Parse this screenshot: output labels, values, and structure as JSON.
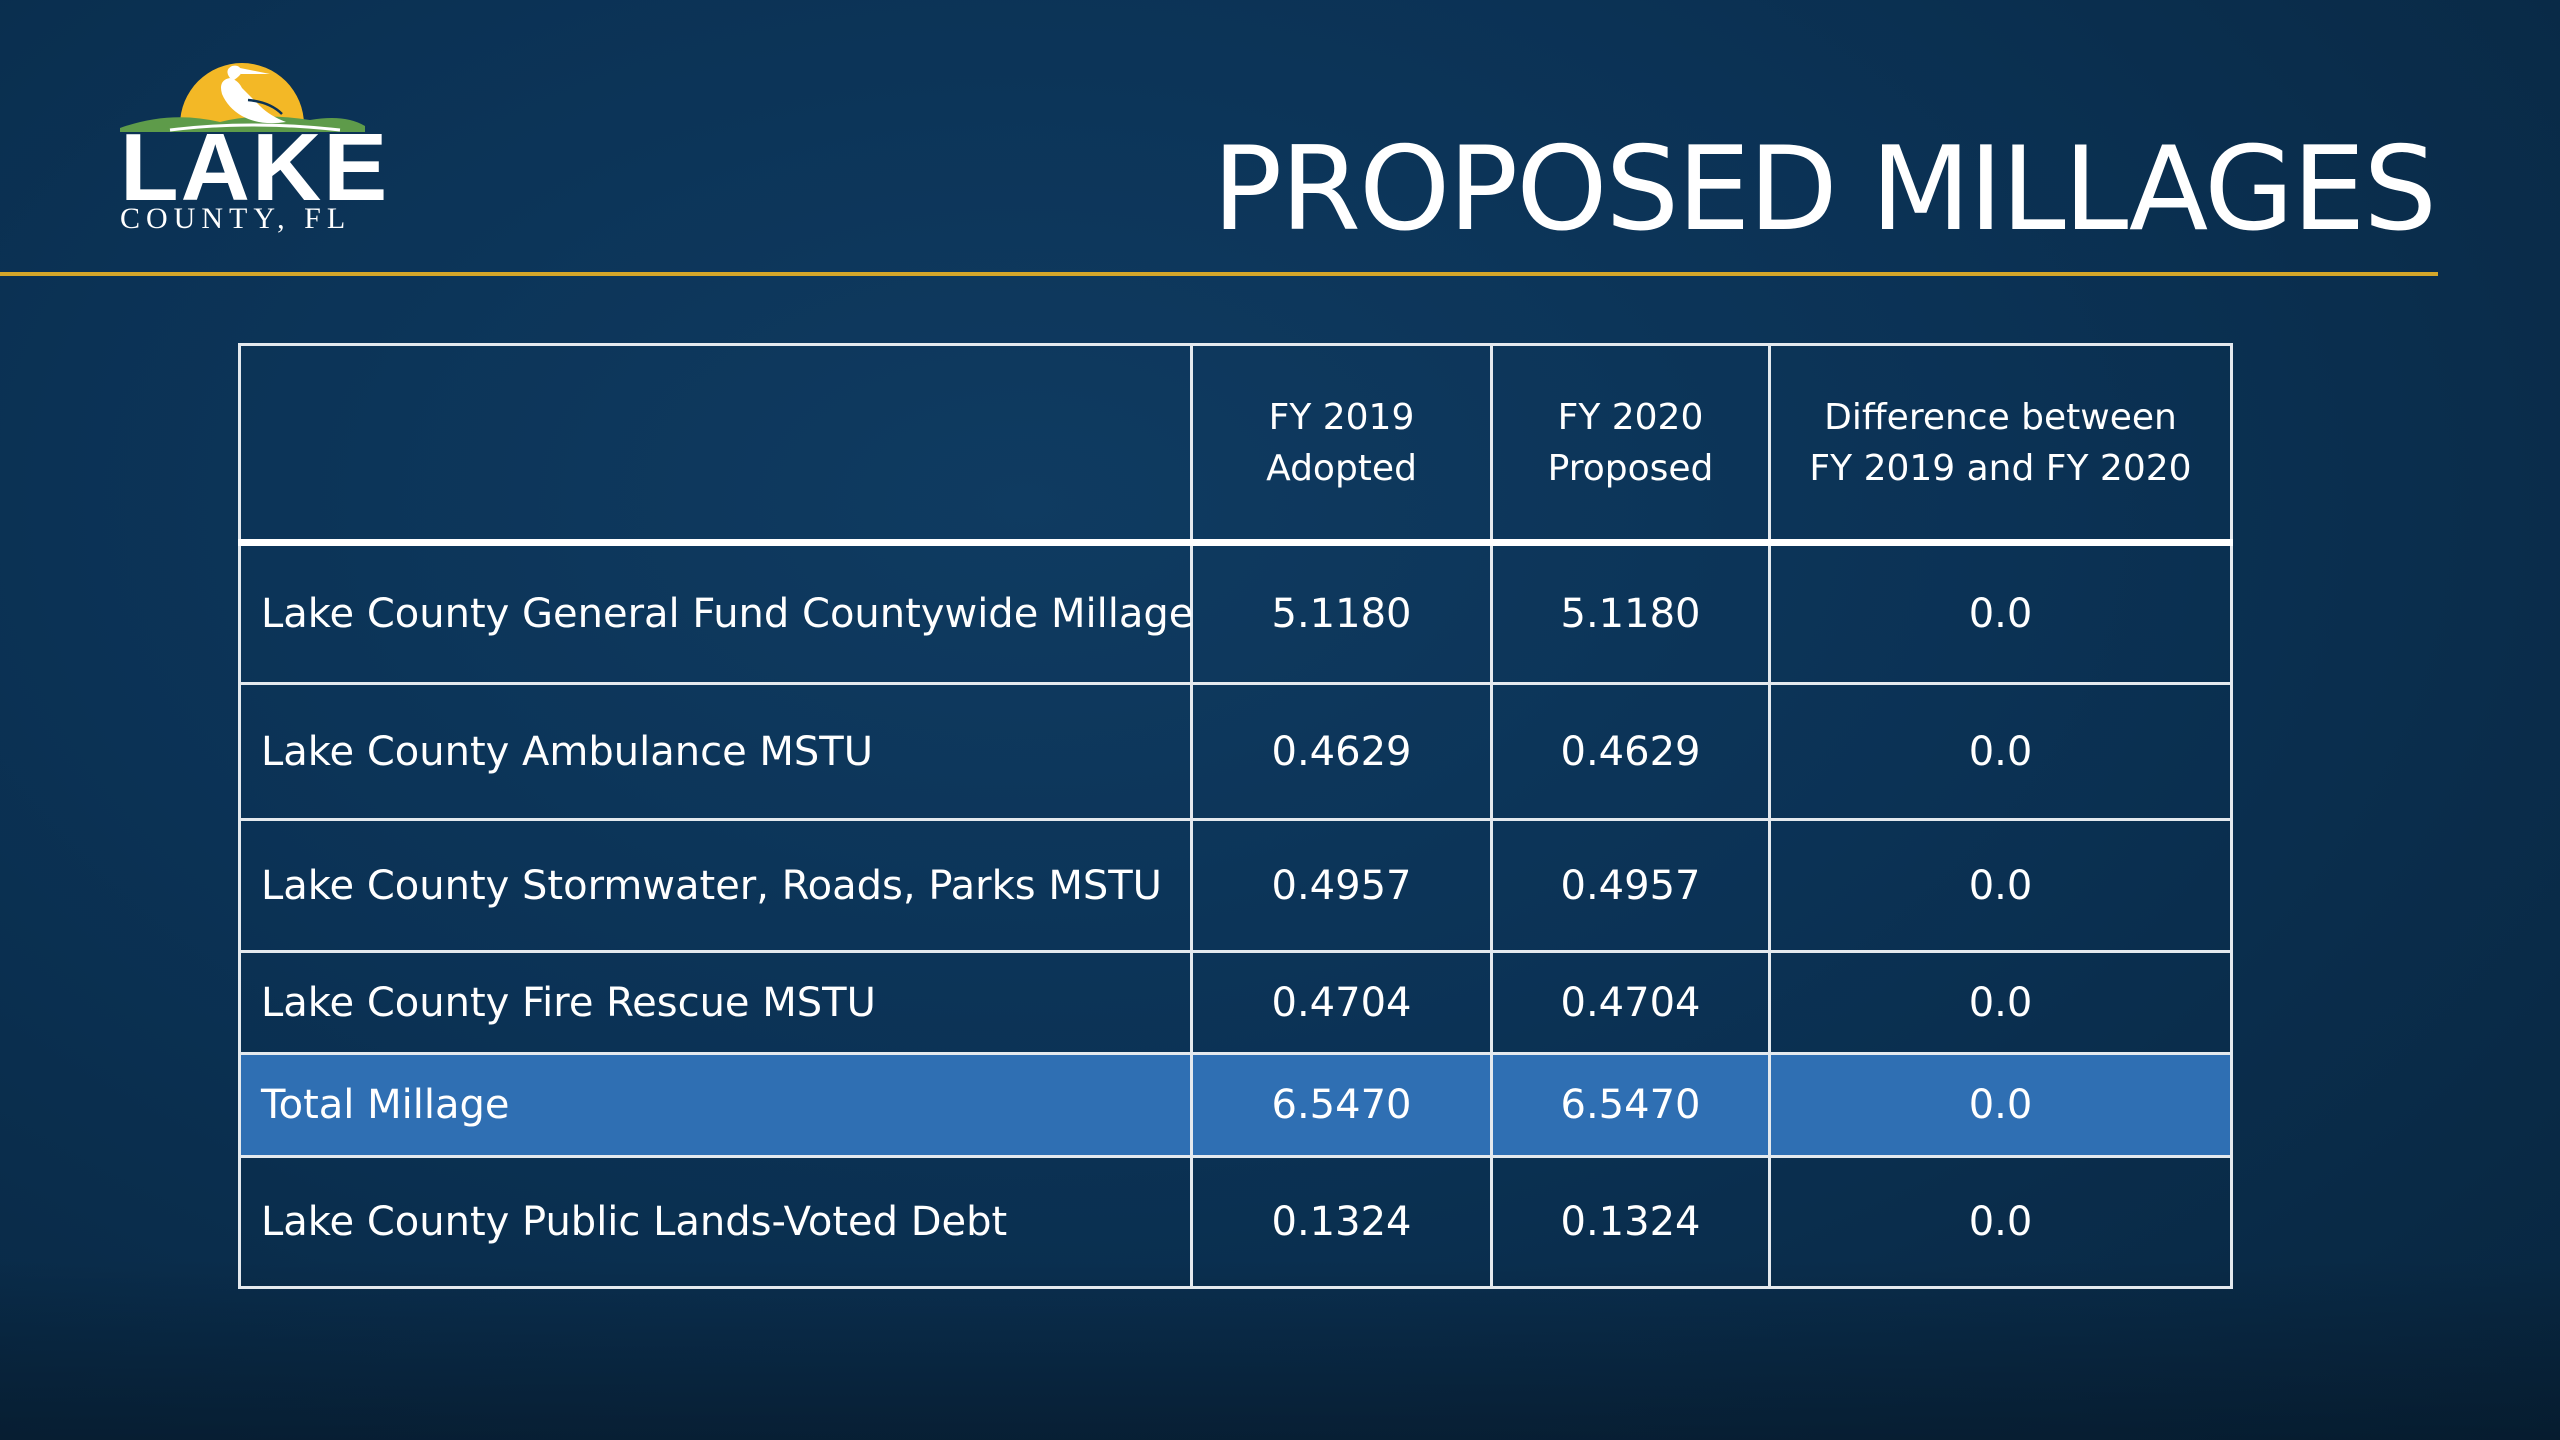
{
  "logo": {
    "word": "LAKE",
    "subword": "COUNTY, FL",
    "colors": {
      "sun": "#f3b826",
      "heron": "#ffffff",
      "hills": "#5e9b4a"
    }
  },
  "title": "PROPOSED MILLAGES",
  "colors": {
    "accent_rule": "#d4a62a",
    "total_row": "#2f6fb3",
    "background": "#0b3255"
  },
  "table": {
    "headers": [
      "",
      "FY 2019\nAdopted",
      "FY 2020\nProposed",
      "Difference between\nFY 2019 and FY 2020"
    ],
    "rows": [
      {
        "label": "Lake County General Fund Countywide Millage",
        "fy2019": "5.1180",
        "fy2020": "5.1180",
        "diff": "0.0"
      },
      {
        "label": "Lake County Ambulance MSTU",
        "fy2019": "0.4629",
        "fy2020": "0.4629",
        "diff": "0.0"
      },
      {
        "label": "Lake County Stormwater, Roads, Parks MSTU",
        "fy2019": "0.4957",
        "fy2020": "0.4957",
        "diff": "0.0"
      },
      {
        "label": "Lake County Fire Rescue MSTU",
        "fy2019": "0.4704",
        "fy2020": "0.4704",
        "diff": "0.0"
      },
      {
        "label": "Total Millage",
        "fy2019": "6.5470",
        "fy2020": "6.5470",
        "diff": "0.0"
      },
      {
        "label": "Lake County Public Lands-Voted Debt",
        "fy2019": "0.1324",
        "fy2020": "0.1324",
        "diff": "0.0"
      }
    ]
  }
}
